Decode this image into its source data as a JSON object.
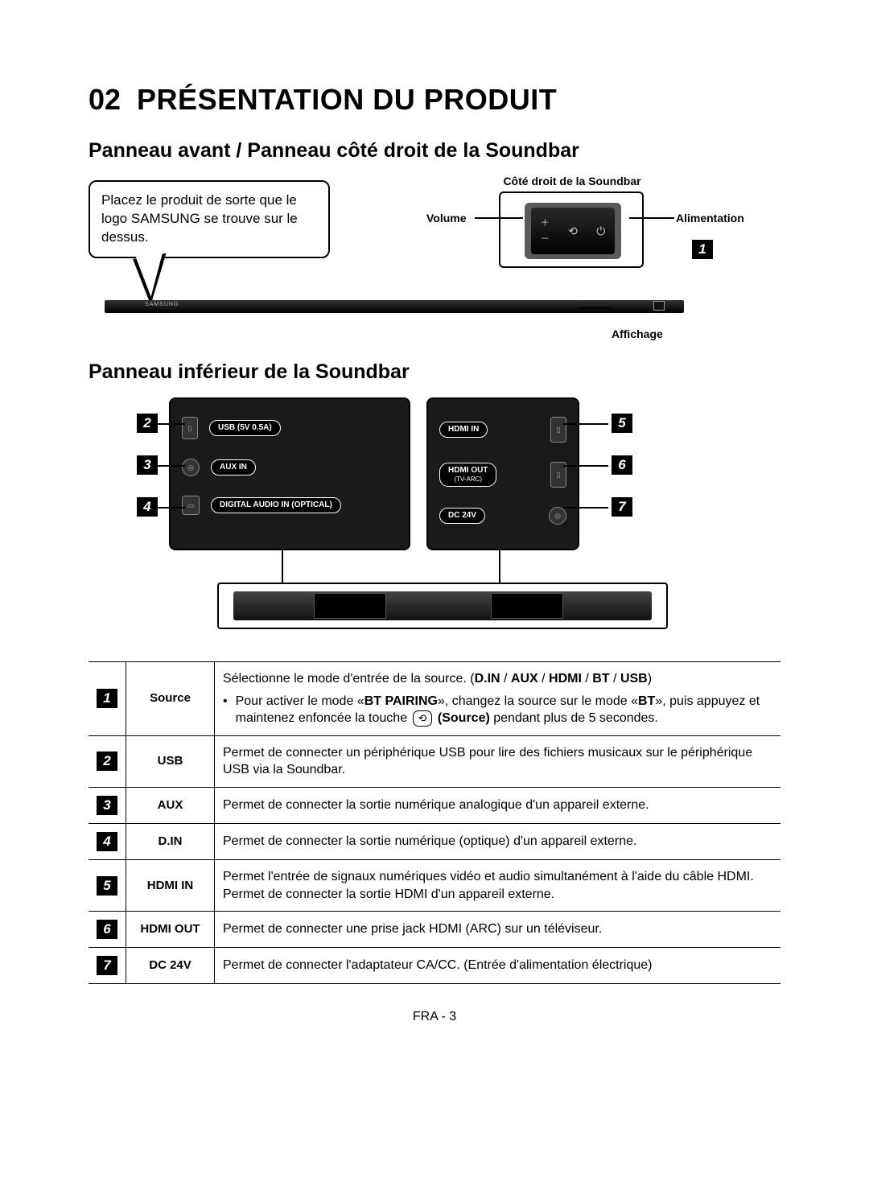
{
  "chapter": {
    "number": "02",
    "title": "PRÉSENTATION DU PRODUIT"
  },
  "section_front": "Panneau avant / Panneau côté droit de la Soundbar",
  "section_bottom": "Panneau inférieur de la Soundbar",
  "callout_note": "Placez le produit de sorte que le logo SAMSUNG se trouve sur le dessus.",
  "side_panel": {
    "title": "Côté droit de la Soundbar",
    "volume": "Volume",
    "power": "Alimentation",
    "display": "Affichage"
  },
  "bottom_ports": {
    "left": [
      {
        "num": "2",
        "label": "USB (5V 0.5A)"
      },
      {
        "num": "3",
        "label": "AUX IN"
      },
      {
        "num": "4",
        "label": "DIGITAL AUDIO IN (OPTICAL)"
      }
    ],
    "right": [
      {
        "num": "5",
        "label": "HDMI IN",
        "sub": ""
      },
      {
        "num": "6",
        "label": "HDMI OUT",
        "sub": "(TV-ARC)"
      },
      {
        "num": "7",
        "label": "DC 24V",
        "sub": ""
      }
    ]
  },
  "table": [
    {
      "num": "1",
      "name": "Source",
      "desc_pre": "Sélectionne le mode d'entrée de la source. (",
      "modes": [
        "D.IN",
        "AUX",
        "HDMI",
        "BT",
        "USB"
      ],
      "desc_post": ")",
      "bullet_a": "Pour activer le mode «",
      "bullet_b": "BT PAIRING",
      "bullet_c": "», changez la source sur le mode «",
      "bullet_d": "BT",
      "bullet_e": "», puis appuyez et maintenez enfoncée la touche ",
      "bullet_src_icon": "⟲",
      "bullet_src_word": "(Source)",
      "bullet_f": " pendant plus de 5 secondes."
    },
    {
      "num": "2",
      "name": "USB",
      "desc": "Permet de connecter un périphérique USB pour lire des fichiers musicaux sur le périphérique USB via la Soundbar."
    },
    {
      "num": "3",
      "name": "AUX",
      "desc": "Permet de connecter la sortie numérique analogique d'un appareil externe."
    },
    {
      "num": "4",
      "name": "D.IN",
      "desc": "Permet de connecter la sortie numérique (optique) d'un appareil externe."
    },
    {
      "num": "5",
      "name": "HDMI IN",
      "desc": "Permet l'entrée de signaux numériques vidéo et audio simultanément à l'aide du câble HDMI. Permet de connecter la sortie HDMI d'un appareil externe."
    },
    {
      "num": "6",
      "name": "HDMI OUT",
      "desc": "Permet de connecter une prise jack HDMI (ARC) sur un téléviseur."
    },
    {
      "num": "7",
      "name": "DC 24V",
      "desc": "Permet de connecter l'adaptateur CA/CC. (Entrée d'alimentation électrique)"
    }
  ],
  "footer": "FRA - 3"
}
